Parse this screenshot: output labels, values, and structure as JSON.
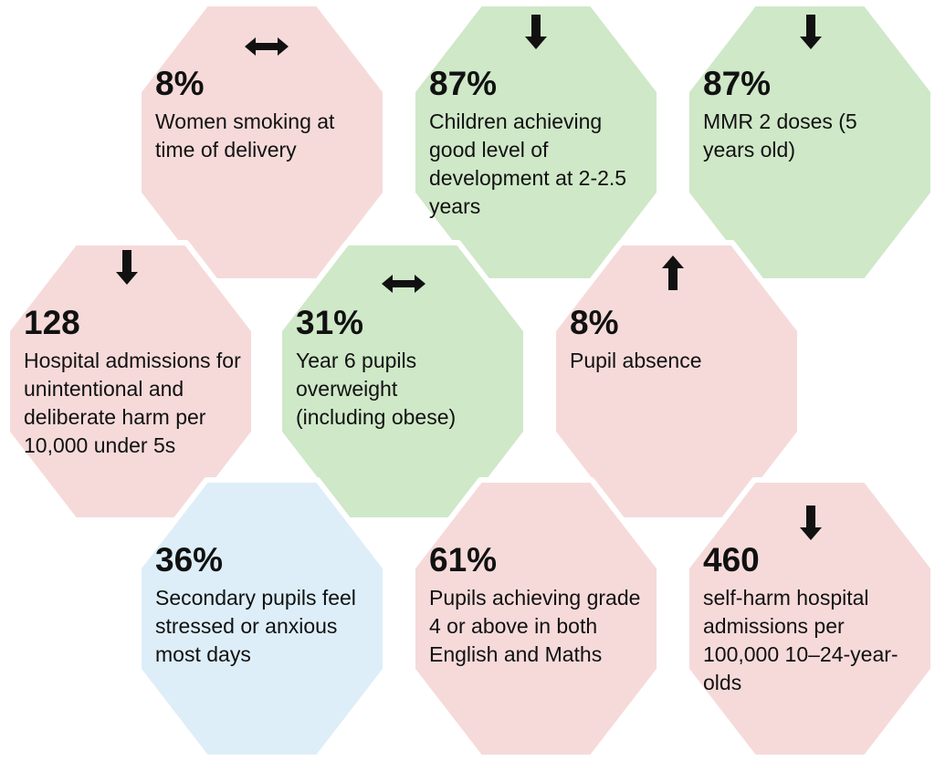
{
  "colors": {
    "red": "#f6dada",
    "green": "#cfe8c8",
    "blue": "#ddeef8",
    "arrow": "#111111"
  },
  "hexes": [
    {
      "value": "8%",
      "label": "Women smoking at time of delivery",
      "color": "red",
      "trend": "stable-icon"
    },
    {
      "value": "87%",
      "label": "Children achieving good level of development at 2-2.5 years",
      "color": "green",
      "trend": "arrow-down-icon"
    },
    {
      "value": "87%",
      "label": "MMR 2 doses (5 years old)",
      "color": "green",
      "trend": "arrow-down-icon"
    },
    {
      "value": "128",
      "label": "Hospital admissions for unintentional and deliberate harm per 10,000 under 5s",
      "color": "red",
      "trend": "arrow-down-icon"
    },
    {
      "value": "31%",
      "label": "Year 6 pupils overweight (including obese)",
      "color": "green",
      "trend": "stable-icon"
    },
    {
      "value": "8%",
      "label": "Pupil absence",
      "color": "red",
      "trend": "arrow-up-icon"
    },
    {
      "value": "36%",
      "label": "Secondary pupils feel stressed or anxious most days",
      "color": "blue",
      "trend": ""
    },
    {
      "value": "61%",
      "label": "Pupils achieving grade 4 or above in both English and Maths",
      "color": "red",
      "trend": ""
    },
    {
      "value": "460",
      "label": "self-harm hospital admissions  per 100,000 10–24-year-olds",
      "color": "red",
      "trend": "arrow-down-icon"
    }
  ]
}
